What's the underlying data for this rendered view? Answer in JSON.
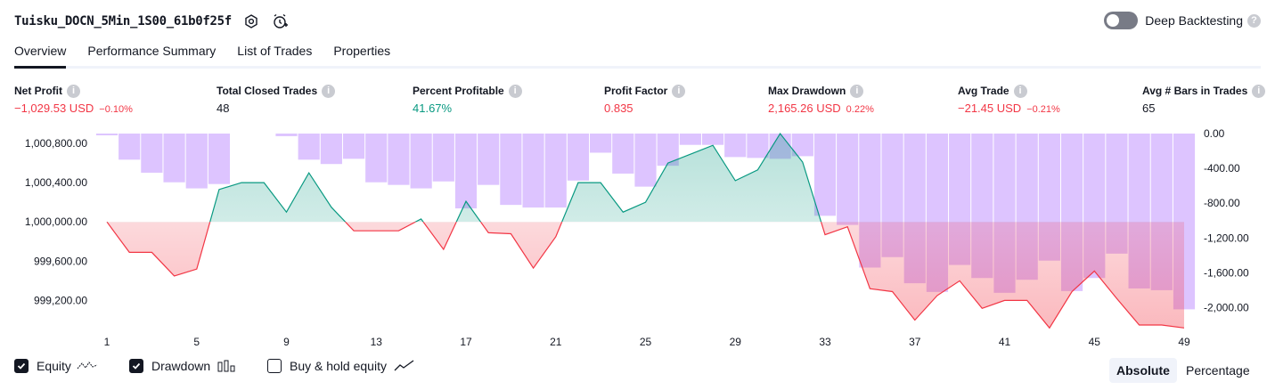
{
  "header": {
    "strategy_name": "Tuisku_DOCN_5Min_1S00_61b0f25f",
    "icons": [
      "settings-hex-icon",
      "alarm-add-icon"
    ]
  },
  "deep_backtesting": {
    "label": "Deep Backtesting",
    "enabled": false
  },
  "tabs": [
    {
      "label": "Overview",
      "active": true
    },
    {
      "label": "Performance Summary",
      "active": false
    },
    {
      "label": "List of Trades",
      "active": false
    },
    {
      "label": "Properties",
      "active": false
    }
  ],
  "metrics": {
    "net_profit": {
      "label": "Net Profit",
      "value": "−1,029.53 USD",
      "pct": "−0.10%"
    },
    "total_closed_trades": {
      "label": "Total Closed Trades",
      "value": "48"
    },
    "percent_profitable": {
      "label": "Percent Profitable",
      "value": "41.67%"
    },
    "profit_factor": {
      "label": "Profit Factor",
      "value": "0.835"
    },
    "max_drawdown": {
      "label": "Max Drawdown",
      "value": "2,165.26 USD",
      "pct": "0.22%"
    },
    "avg_trade": {
      "label": "Avg Trade",
      "value": "−21.45 USD",
      "pct": "−0.21%"
    },
    "avg_bars": {
      "label": "Avg # Bars in Trades",
      "value": "65"
    }
  },
  "chart_data": {
    "type": "line",
    "x_ticks": [
      "1",
      "5",
      "9",
      "13",
      "17",
      "21",
      "25",
      "29",
      "33",
      "37",
      "41",
      "45",
      "49"
    ],
    "left_axis": {
      "ticks": [
        "1,000,800.00",
        "1,000,400.00",
        "1,000,000.00",
        "999,600.00",
        "999,200.00"
      ],
      "ylim": [
        998950,
        1000900
      ],
      "baseline": 1000000
    },
    "right_axis": {
      "ticks": [
        "0.00",
        "-400.00",
        "-800.00",
        "-1,200.00",
        "-1,600.00",
        "-2,000.00"
      ],
      "ylim": [
        -2200,
        0
      ]
    },
    "series": [
      {
        "name": "Equity",
        "x": [
          1,
          2,
          3,
          4,
          5,
          6,
          7,
          8,
          9,
          10,
          11,
          12,
          13,
          14,
          15,
          16,
          17,
          18,
          19,
          20,
          21,
          22,
          23,
          24,
          25,
          26,
          27,
          28,
          29,
          30,
          31,
          32,
          33,
          34,
          35,
          36,
          37,
          38,
          39,
          40,
          41,
          42,
          43,
          44,
          45,
          46,
          47,
          48,
          49
        ],
        "values": [
          1000000,
          999690,
          999690,
          999450,
          999520,
          1000330,
          1000400,
          1000400,
          1000100,
          1000500,
          1000150,
          999910,
          999910,
          999910,
          1000030,
          999720,
          1000210,
          999890,
          999880,
          999530,
          999850,
          1000400,
          1000400,
          1000100,
          1000200,
          1000600,
          1000690,
          1000780,
          1000420,
          1000530,
          1000900,
          1000610,
          999870,
          999950,
          999320,
          999290,
          999000,
          999250,
          999400,
          999120,
          999200,
          999200,
          998920,
          999290,
          999500,
          999220,
          998950,
          998950,
          998920
        ]
      },
      {
        "name": "Drawdown",
        "x": [
          1,
          2,
          3,
          4,
          5,
          6,
          7,
          8,
          9,
          10,
          11,
          12,
          13,
          14,
          15,
          16,
          17,
          18,
          19,
          20,
          21,
          22,
          23,
          24,
          25,
          26,
          27,
          28,
          29,
          30,
          31,
          32,
          33,
          34,
          35,
          36,
          37,
          38,
          39,
          40,
          41,
          42,
          43,
          44,
          45,
          46,
          47,
          48,
          49
        ],
        "values": [
          -20,
          -300,
          -450,
          -560,
          -630,
          -580,
          0,
          0,
          -30,
          -300,
          -350,
          -290,
          -560,
          -590,
          -630,
          -550,
          -860,
          -590,
          -820,
          -850,
          -850,
          -540,
          -220,
          -460,
          -610,
          -370,
          -130,
          -130,
          -270,
          -280,
          -290,
          -260,
          -945,
          -1050,
          -1540,
          -1420,
          -1720,
          -1820,
          -1510,
          -1660,
          -1830,
          -1680,
          -1460,
          -1810,
          -1660,
          -1380,
          -1780,
          -1800,
          -2020
        ]
      }
    ],
    "colors": {
      "equity_profit": "#089981",
      "equity_loss": "#f23645",
      "drawdown": "#d1b0ff"
    }
  },
  "legend": [
    {
      "label": "Equity",
      "checked": true,
      "icon": "equity-line-icon"
    },
    {
      "label": "Drawdown",
      "checked": true,
      "icon": "drawdown-bars-icon"
    },
    {
      "label": "Buy & hold equity",
      "checked": false,
      "icon": "buy-hold-line-icon"
    }
  ],
  "view_modes": [
    {
      "label": "Absolute",
      "active": true
    },
    {
      "label": "Percentage",
      "active": false
    }
  ]
}
